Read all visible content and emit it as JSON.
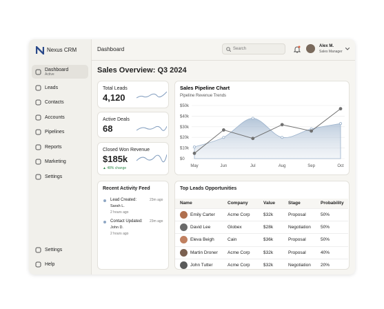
{
  "sidebar": {
    "brand": "Nexus CRM",
    "nav": [
      {
        "label": "Dashboard",
        "sub": "Active"
      },
      {
        "label": "Leads"
      },
      {
        "label": "Contacts"
      },
      {
        "label": "Accounts"
      },
      {
        "label": "Pipelines"
      },
      {
        "label": "Reports"
      },
      {
        "label": "Marketing"
      },
      {
        "label": "Settings"
      }
    ],
    "bottom": [
      "Settings",
      "Help"
    ]
  },
  "header": {
    "title": "Dashboard",
    "search": "Search",
    "user": "Alex M.",
    "role": "Sales Manager"
  },
  "page_title": "Sales Overview: Q3 2024",
  "kpis": [
    {
      "label": "Total Leads",
      "value": "4,120"
    },
    {
      "label": "Active Deals",
      "value": "68"
    },
    {
      "label": "Closed Won Revenue",
      "value": "$185k",
      "change": "▲ 48% change"
    }
  ],
  "chart_data": {
    "type": "line",
    "title": "Sales Pipeline Chart",
    "subtitle": "Pipeline Revenue Trends",
    "categories": [
      "May",
      "Jun",
      "Jul",
      "Aug",
      "Sep",
      "Oct"
    ],
    "series": [
      {
        "color": "#9bb2cc",
        "values": [
          11,
          20,
          38,
          20,
          28,
          33
        ]
      },
      {
        "color": "#707070",
        "values": [
          5,
          27,
          19,
          32,
          26,
          47
        ]
      }
    ],
    "ylim": [
      0,
      50
    ],
    "yticks": [
      {
        "value": 0,
        "label": "$0"
      },
      {
        "value": 10,
        "label": "$10k"
      },
      {
        "value": 20,
        "label": "$20k"
      },
      {
        "value": 30,
        "label": "$30k"
      },
      {
        "value": 40,
        "label": "$40k"
      },
      {
        "value": 50,
        "label": "$50k"
      }
    ],
    "grid": true
  },
  "activity": {
    "title": "Recent Activity Feed",
    "items": [
      {
        "action": "Lead Created:",
        "who": "Sarah L.",
        "ago": "2 hours ago",
        "time": "23m ago"
      },
      {
        "action": "Contact Updated:",
        "who": "John D.",
        "ago": "2 hours ago",
        "time": "23m ago"
      }
    ]
  },
  "table": {
    "title": "Top Leads Opportunities",
    "columns": [
      "Name",
      "Company",
      "Value",
      "Stage",
      "Probability"
    ],
    "rows": [
      [
        "Emily Carter",
        "Acme Corp",
        "$32k",
        "Proposal",
        "50%"
      ],
      [
        "David Lee",
        "Globex",
        "$28k",
        "Negotiation",
        "50%"
      ],
      [
        "Eleva Beigh",
        "Cain",
        "$36k",
        "Proposal",
        "50%"
      ],
      [
        "Martin Droner",
        "Acme Corp",
        "$32k",
        "Proposal",
        "40%"
      ],
      [
        "John Tutter",
        "Acme Corp",
        "$32k",
        "Negotiation",
        "20%"
      ]
    ]
  }
}
